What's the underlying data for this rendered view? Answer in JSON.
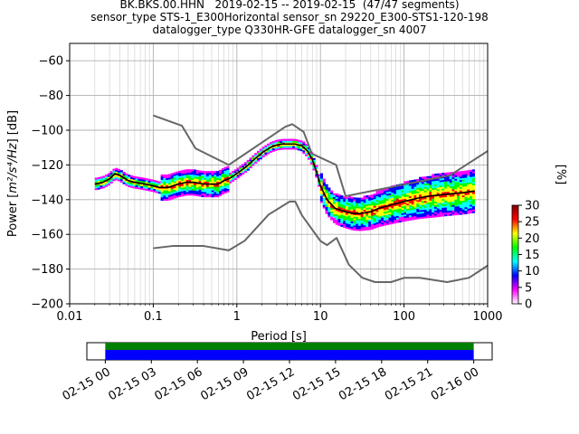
{
  "chart_data": [
    {
      "type": "heatmap",
      "title_lines": [
        "BK.BKS.00.HHN   2019-02-15 -- 2019-02-15  (47/47 segments)",
        "sensor_type STS-1_E300Horizontal sensor_sn 29220_E300-STS1-120-198",
        "datalogger_type Q330HR-GFE datalogger_sn 4007"
      ],
      "xlabel": "Period [s]",
      "ylabel_main": "Power [",
      "ylabel_units": "m²/s⁴/Hz",
      "ylabel_tail": "] [dB]",
      "xscale": "log",
      "xlim": [
        0.01,
        1000
      ],
      "ylim": [
        -200,
        -50
      ],
      "x_ticks": [
        {
          "v": 0.01,
          "label": "0.01"
        },
        {
          "v": 0.1,
          "label": "0.1"
        },
        {
          "v": 1,
          "label": "1"
        },
        {
          "v": 10,
          "label": "10"
        },
        {
          "v": 100,
          "label": "100"
        },
        {
          "v": 1000,
          "label": "1000"
        }
      ],
      "y_ticks": [
        {
          "v": -60,
          "label": "−60"
        },
        {
          "v": -80,
          "label": "−80"
        },
        {
          "v": -100,
          "label": "−100"
        },
        {
          "v": -120,
          "label": "−120"
        },
        {
          "v": -140,
          "label": "−140"
        },
        {
          "v": -160,
          "label": "−160"
        },
        {
          "v": -180,
          "label": "−180"
        },
        {
          "v": -200,
          "label": "−200"
        }
      ],
      "grid": true,
      "nhnm": {
        "x": [
          0.1,
          0.22,
          0.32,
          0.8,
          3.8,
          4.6,
          6.3,
          7.9,
          15.4,
          20,
          354.8,
          1000
        ],
        "y": [
          -91.5,
          -97.4,
          -110.5,
          -120,
          -98,
          -96.5,
          -101,
          -113.5,
          -120,
          -138,
          -126,
          -112
        ]
      },
      "nlnm": {
        "x": [
          0.1,
          0.17,
          0.4,
          0.8,
          1.24,
          2.4,
          4.3,
          5,
          6,
          10,
          12,
          15.6,
          21.9,
          31.6,
          45,
          70,
          101,
          154,
          328,
          600,
          1000
        ],
        "y": [
          -168,
          -166.7,
          -166.7,
          -169.2,
          -163.7,
          -148.6,
          -141.1,
          -141.1,
          -149,
          -163.8,
          -166.2,
          -162.1,
          -177.5,
          -185,
          -187.5,
          -187.5,
          -185,
          -185,
          -187.5,
          -185,
          -178
        ]
      },
      "mean_psd": {
        "x": [
          0.02,
          0.025,
          0.03,
          0.035,
          0.04,
          0.05,
          0.06,
          0.08,
          0.1,
          0.12,
          0.15,
          0.2,
          0.25,
          0.3,
          0.4,
          0.5,
          0.6,
          0.7,
          0.8,
          1,
          1.3,
          1.6,
          2,
          2.5,
          3,
          3.5,
          4,
          5,
          6,
          7,
          8,
          9,
          10,
          12,
          15,
          20,
          25,
          30,
          40,
          50,
          70,
          100,
          150,
          200,
          300,
          500,
          700
        ],
        "y": [
          -131,
          -130,
          -128,
          -125,
          -126,
          -129,
          -130,
          -131,
          -132,
          -133,
          -133,
          -131,
          -130,
          -130,
          -131,
          -131,
          -131,
          -129,
          -128,
          -125,
          -121,
          -117,
          -113,
          -110,
          -108.5,
          -108,
          -108,
          -108,
          -109,
          -112,
          -117,
          -124,
          -132,
          -140,
          -145,
          -147,
          -148,
          -148,
          -147,
          -145,
          -143,
          -141,
          -139,
          -138,
          -137,
          -136,
          -135
        ]
      },
      "series_colors": {
        "mean": "#000000",
        "models": "#666666"
      },
      "colorbar": {
        "label": "[%]",
        "range": [
          0,
          30
        ],
        "ticks": [
          {
            "v": 0,
            "label": "0"
          },
          {
            "v": 5,
            "label": "5"
          },
          {
            "v": 10,
            "label": "10"
          },
          {
            "v": 15,
            "label": "15"
          },
          {
            "v": 20,
            "label": "20"
          },
          {
            "v": 25,
            "label": "25"
          },
          {
            "v": 30,
            "label": "30"
          }
        ],
        "colors": [
          "#ffffff",
          "#ff00ff",
          "#0000ff",
          "#00ffff",
          "#00ff00",
          "#ffff00",
          "#ff0000",
          "#800000"
        ]
      }
    },
    {
      "type": "timeline",
      "x_ticks": [
        "02-15 00",
        "02-15 03",
        "02-15 06",
        "02-15 09",
        "02-15 12",
        "02-15 15",
        "02-15 18",
        "02-15 21",
        "02-16 00"
      ],
      "xlim_hours": [
        -1.2,
        25.2
      ],
      "data_span_hours": [
        0,
        24
      ],
      "bar_colors": {
        "coverage": "#008000",
        "data": "#0000ff"
      }
    }
  ]
}
